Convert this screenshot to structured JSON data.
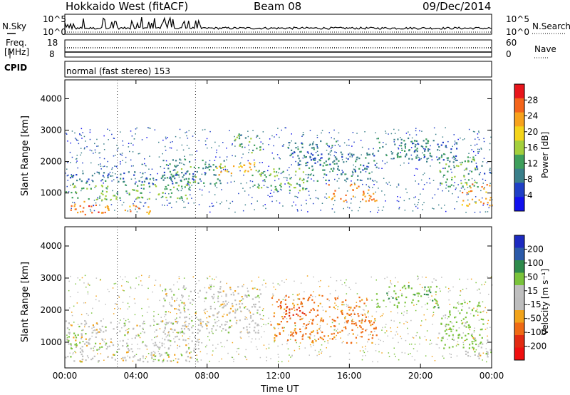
{
  "header": {
    "title": "Hokkaido West (fitACF)",
    "beam": "Beam 08",
    "date": "09/Dec/2014"
  },
  "noise_panel": {
    "left_label": "N.Sky",
    "right_label": "N.Search",
    "left_ticks": [
      "10^5",
      "10^0"
    ],
    "right_ticks": [
      "10^5",
      "10^0"
    ]
  },
  "freq_panel": {
    "left_label": "Freq.",
    "unit": "[MHz]",
    "left_ticks": [
      "18",
      "8"
    ],
    "right_label": "Nave",
    "right_ticks": [
      "60",
      "0"
    ]
  },
  "cpid": {
    "label": "CPID",
    "text": "normal (fast stereo) 153"
  },
  "chart_data": [
    {
      "type": "heatmap",
      "panel": "power",
      "ylabel": "Slant Range [km]",
      "xlabel": "Time UT",
      "xlim": [
        "00:00",
        "24:00"
      ],
      "ylim": [
        200,
        4600
      ],
      "yticks": [
        "1000",
        "2000",
        "3000",
        "4000"
      ],
      "xticks": [
        "00:00",
        "04:00",
        "08:00",
        "12:00",
        "16:00",
        "20:00",
        "00:00"
      ],
      "colorbar": {
        "label": "Power [dB]",
        "ticks": [
          "28",
          "24",
          "20",
          "16",
          "12",
          "8",
          "4"
        ],
        "colors": [
          "#e8151b",
          "#f4641a",
          "#f7a21c",
          "#f4d41a",
          "#a3cf3c",
          "#3e9f5c",
          "#3a7f8a",
          "#1f3fc6",
          "#1111ee"
        ]
      },
      "regions": [
        {
          "t0": 0.2,
          "t1": 2.5,
          "r0": 320,
          "r1": 800,
          "level": 27
        },
        {
          "t0": 0.0,
          "t1": 7.0,
          "r0": 800,
          "r1": 1300,
          "level": 14
        },
        {
          "t0": 0.0,
          "t1": 7.5,
          "r0": 1300,
          "r1": 1700,
          "level": 7
        },
        {
          "t0": 3.3,
          "t1": 4.8,
          "r0": 350,
          "r1": 650,
          "level": 25
        },
        {
          "t0": 5.5,
          "t1": 9.0,
          "r0": 1300,
          "r1": 2100,
          "level": 11
        },
        {
          "t0": 8.5,
          "t1": 10.8,
          "r0": 1600,
          "r1": 2000,
          "level": 22
        },
        {
          "t0": 9.5,
          "t1": 11.0,
          "r0": 2300,
          "r1": 2900,
          "level": 13
        },
        {
          "t0": 10.5,
          "t1": 13.5,
          "r0": 1100,
          "r1": 1800,
          "level": 14
        },
        {
          "t0": 12.5,
          "t1": 15.5,
          "r0": 1900,
          "r1": 2700,
          "level": 8
        },
        {
          "t0": 13.5,
          "t1": 17.5,
          "r0": 1400,
          "r1": 2300,
          "level": 9
        },
        {
          "t0": 14.8,
          "t1": 17.5,
          "r0": 750,
          "r1": 1300,
          "level": 25
        },
        {
          "t0": 17.5,
          "t1": 20.5,
          "r0": 2100,
          "r1": 2800,
          "level": 10
        },
        {
          "t0": 19.5,
          "t1": 22.0,
          "r0": 2000,
          "r1": 2700,
          "level": 7
        },
        {
          "t0": 21.0,
          "t1": 23.2,
          "r0": 1200,
          "r1": 2200,
          "level": 13
        },
        {
          "t0": 22.3,
          "t1": 24.0,
          "r0": 600,
          "r1": 1300,
          "level": 24
        },
        {
          "t0": 23.0,
          "t1": 24.0,
          "r0": 1500,
          "r1": 1900,
          "level": 6
        }
      ]
    },
    {
      "type": "heatmap",
      "panel": "velocity",
      "ylabel": "Slant Range [km]",
      "xlabel": "Time UT",
      "xlim": [
        "00:00",
        "24:00"
      ],
      "ylim": [
        200,
        4600
      ],
      "yticks": [
        "1000",
        "2000",
        "3000",
        "4000"
      ],
      "xticks": [
        "00:00",
        "04:00",
        "08:00",
        "12:00",
        "16:00",
        "20:00",
        "00:00"
      ],
      "colorbar": {
        "label": "Velocity [m s⁻¹]",
        "ticks": [
          "200",
          "100",
          "50",
          "15",
          "-15",
          "-50",
          "-100",
          "-200"
        ],
        "colors": [
          "#1d2ac0",
          "#2b5aa9",
          "#2e8a4c",
          "#7ac33b",
          "#bfbfbf",
          "#bdbdbd",
          "#f1a31b",
          "#ef6a14",
          "#e22b12",
          "#ef0f0f"
        ]
      },
      "regions": [
        {
          "t0": 0.0,
          "t1": 7.5,
          "r0": 400,
          "r1": 1700,
          "level": 0
        },
        {
          "t0": 0.0,
          "t1": 1.0,
          "r0": 800,
          "r1": 1300,
          "level": 25
        },
        {
          "t0": 5.5,
          "t1": 11.0,
          "r0": 1300,
          "r1": 2800,
          "level": 0
        },
        {
          "t0": 11.5,
          "t1": 17.5,
          "r0": 1000,
          "r1": 2500,
          "level": -60
        },
        {
          "t0": 12.0,
          "t1": 13.5,
          "r0": 1800,
          "r1": 2200,
          "level": -120
        },
        {
          "t0": 17.5,
          "t1": 21.0,
          "r0": 2100,
          "r1": 2800,
          "level": 40
        },
        {
          "t0": 21.0,
          "t1": 23.5,
          "r0": 800,
          "r1": 2300,
          "level": 30
        },
        {
          "t0": 22.5,
          "t1": 24.0,
          "r0": 500,
          "r1": 1200,
          "level": 0
        }
      ]
    }
  ]
}
